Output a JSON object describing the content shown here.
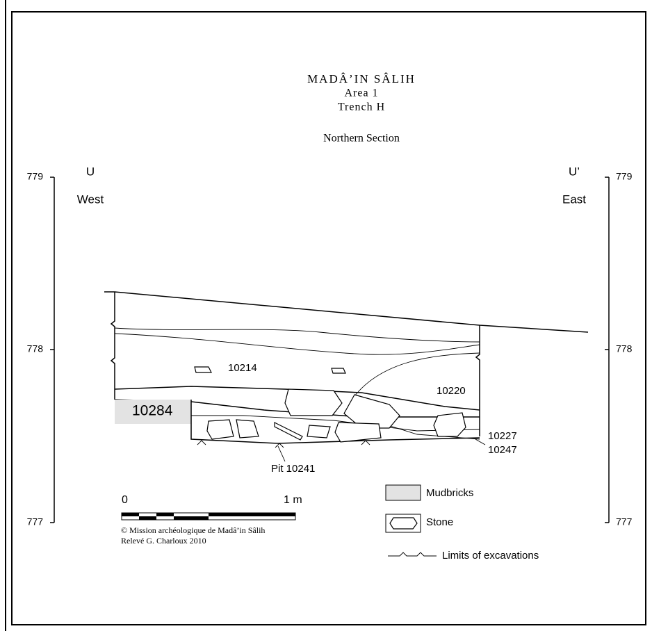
{
  "header": {
    "title": "MADÂ’IN SÂLIH",
    "area": "Area 1",
    "trench": "Trench H",
    "section": "Northern Section"
  },
  "orientation": {
    "left_point": "U",
    "left_direction": "West",
    "right_point": "U’",
    "right_direction": "East"
  },
  "elevation_left": [
    779,
    778,
    777
  ],
  "elevation_right": [
    779,
    778,
    777
  ],
  "units": {
    "u10214": "10214",
    "u10220": "10220",
    "u10284": "10284",
    "u10227": "10227",
    "u10247": "10247",
    "pit": "Pit 10241"
  },
  "scale_bar": {
    "start": "0",
    "end": "1 m"
  },
  "credits": [
    "© Mission archéologique de Madâ’in Sâlih",
    "Relevé G. Charloux 2010"
  ],
  "legend": [
    "Mudbricks",
    "Stone",
    "Limits of excavations"
  ]
}
